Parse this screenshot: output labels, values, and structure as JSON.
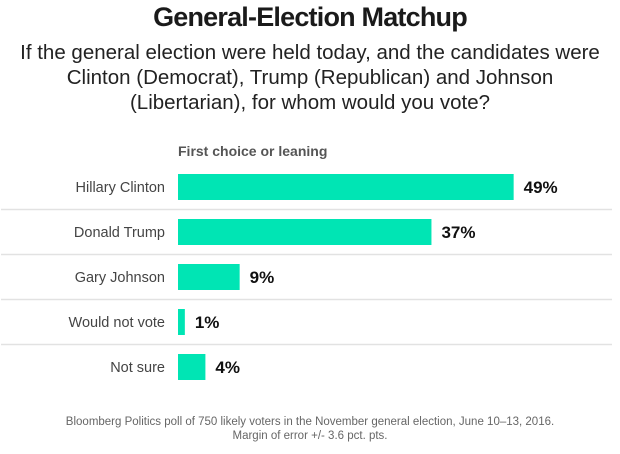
{
  "chart_data": {
    "type": "bar",
    "orientation": "horizontal",
    "title": "General-Election Matchup",
    "subtitle": "If the general election were held today, and the candidates were Clinton (Democrat), Trump (Republican) and Johnson (Libertarian), for whom would you vote?",
    "group_label": "First choice or leaning",
    "categories": [
      "Hillary Clinton",
      "Donald Trump",
      "Gary Johnson",
      "Would not vote",
      "Not sure"
    ],
    "values": [
      49,
      37,
      9,
      1,
      4
    ],
    "value_labels": [
      "49%",
      "37%",
      "9%",
      "1%",
      "4%"
    ],
    "unit": "%",
    "xlim": [
      0,
      60
    ],
    "grid": false,
    "legend": "none",
    "bar_color": "#00e5b4",
    "footer": [
      "Bloomberg Politics poll of 750 likely voters in the November general election, June 10–13, 2016.",
      "Margin of error +/- 3.6 pct. pts."
    ]
  }
}
